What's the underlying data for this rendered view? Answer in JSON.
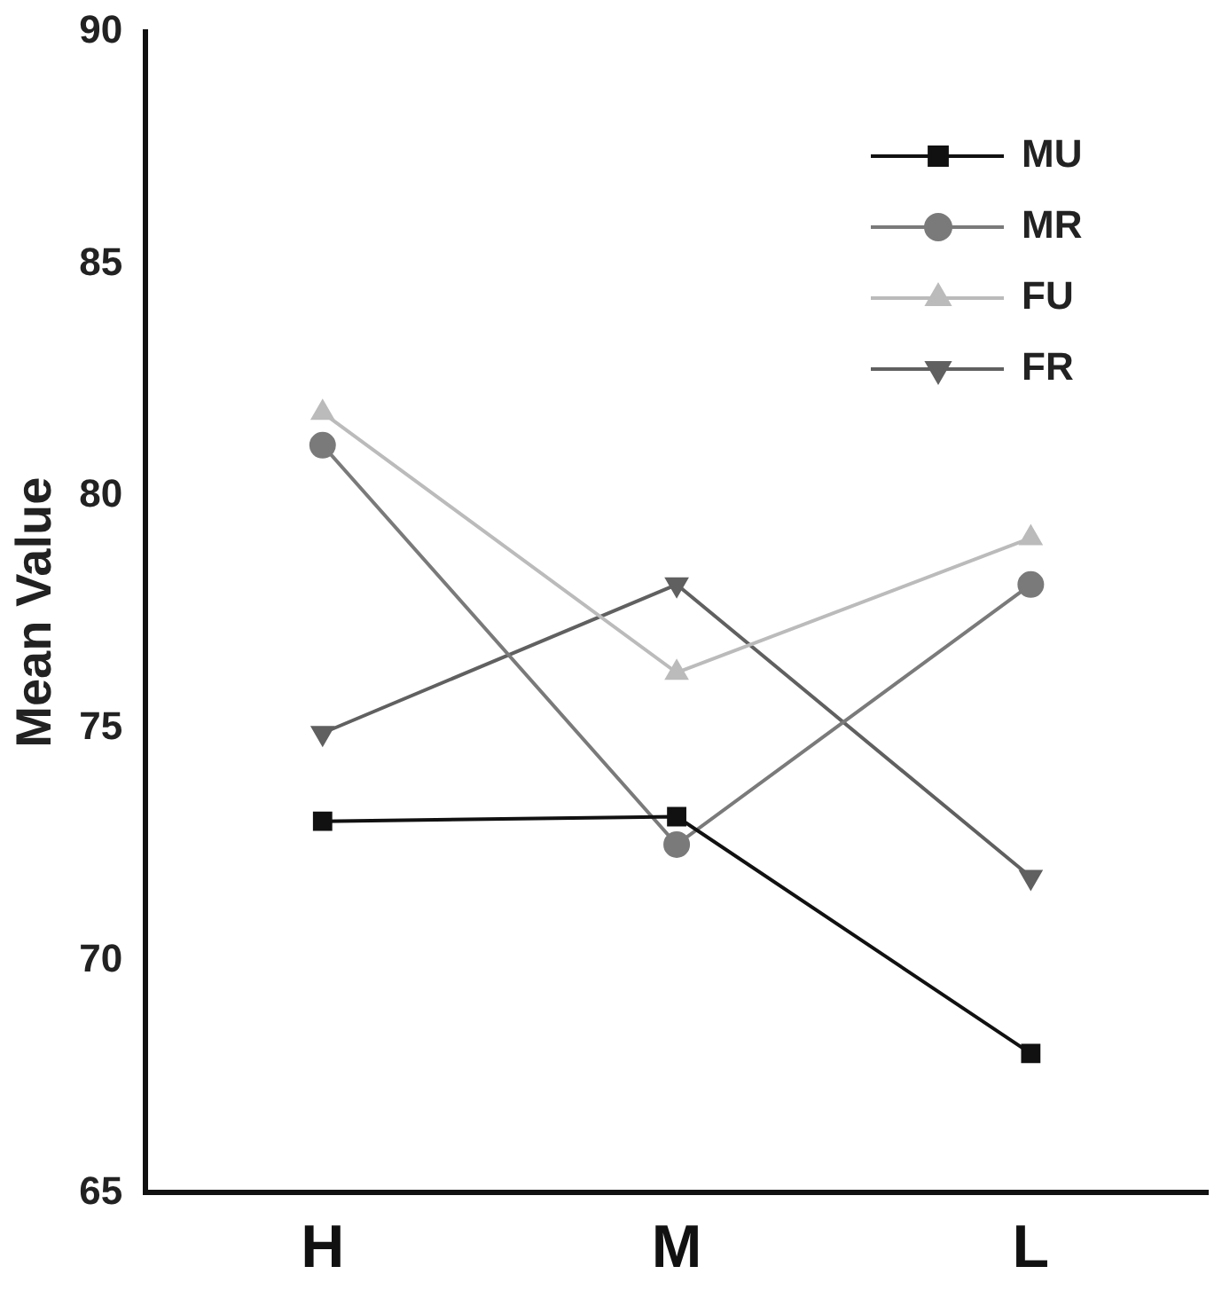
{
  "chart_data": {
    "type": "line",
    "ylabel": "Mean Value",
    "categories": [
      "H",
      "M",
      "L"
    ],
    "series": [
      {
        "name": "MU",
        "color": "#111111",
        "marker": "square",
        "values": [
          73.0,
          73.1,
          68.0
        ]
      },
      {
        "name": "MR",
        "color": "#7a7a7a",
        "marker": "circle",
        "values": [
          81.1,
          72.5,
          78.1
        ]
      },
      {
        "name": "FU",
        "color": "#bbbbbb",
        "marker": "triangle",
        "values": [
          81.8,
          76.2,
          79.1
        ]
      },
      {
        "name": "FR",
        "color": "#606060",
        "marker": "triangle-down",
        "values": [
          74.9,
          78.1,
          71.8
        ]
      }
    ],
    "ylim": [
      65,
      90
    ],
    "yticks": [
      65,
      70,
      75,
      80,
      85,
      90
    ],
    "grid": false,
    "legend": "top right",
    "line_style": "solid"
  }
}
